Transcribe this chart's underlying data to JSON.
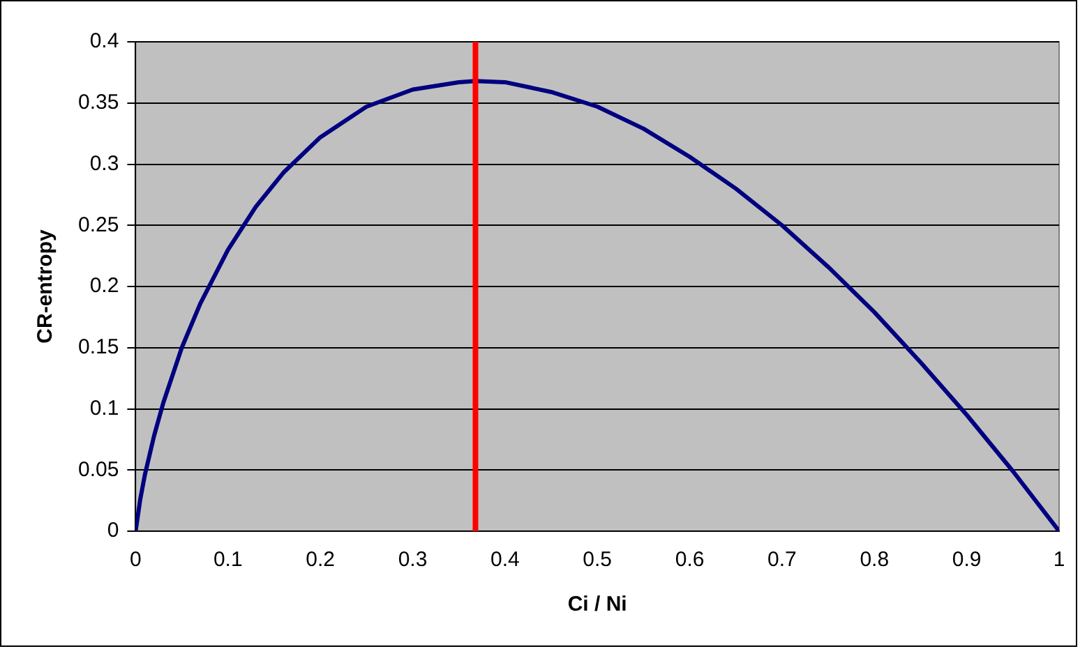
{
  "chart_data": {
    "type": "line",
    "xlabel": "Ci / Ni",
    "ylabel": "CR-entropy",
    "x": [
      0,
      0.005,
      0.01,
      0.02,
      0.03,
      0.05,
      0.07,
      0.1,
      0.13,
      0.16,
      0.2,
      0.25,
      0.3,
      0.35,
      0.368,
      0.4,
      0.45,
      0.5,
      0.55,
      0.6,
      0.65,
      0.7,
      0.75,
      0.8,
      0.85,
      0.9,
      0.95,
      1
    ],
    "series": [
      {
        "color": "#000080",
        "values": [
          0,
          0.026,
          0.046,
          0.078,
          0.105,
          0.15,
          0.186,
          0.23,
          0.265,
          0.293,
          0.322,
          0.347,
          0.361,
          0.367,
          0.368,
          0.367,
          0.359,
          0.347,
          0.329,
          0.306,
          0.28,
          0.25,
          0.216,
          0.179,
          0.138,
          0.095,
          0.049,
          0
        ]
      }
    ],
    "xlim": [
      0,
      1
    ],
    "xticks": [
      0,
      0.1,
      0.2,
      0.3,
      0.4,
      0.5,
      0.6,
      0.7,
      0.8,
      0.9,
      1
    ],
    "ylim": [
      0,
      0.4
    ],
    "yticks": [
      0,
      0.05,
      0.1,
      0.15,
      0.2,
      0.25,
      0.3,
      0.35,
      0.4
    ],
    "ref_lines": [
      {
        "axis": "x",
        "value": 0.368,
        "color": "#ff0000"
      }
    ],
    "grid": "y",
    "legend": false,
    "marker": "none",
    "line_style": "solid"
  }
}
